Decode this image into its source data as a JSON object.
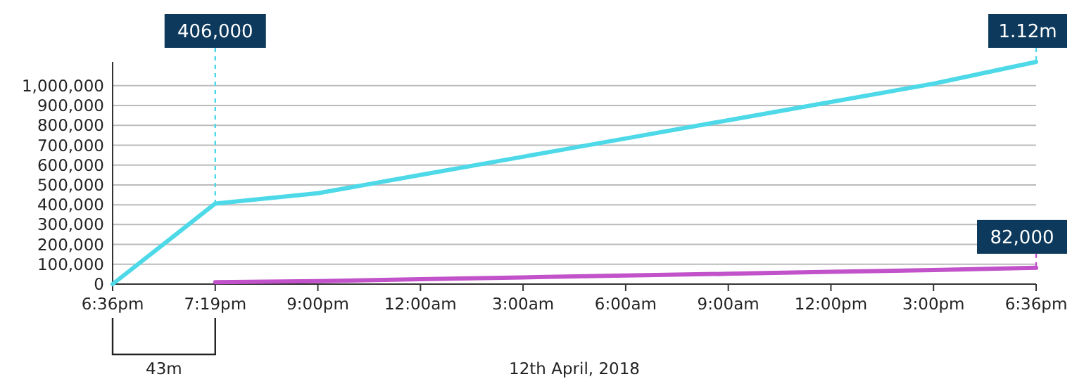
{
  "chart_data": {
    "type": "line",
    "categories": [
      "6:36pm",
      "7:19pm",
      "9:00pm",
      "12:00am",
      "3:00am",
      "6:00am",
      "9:00am",
      "12:00pm",
      "3:00pm",
      "6:36pm"
    ],
    "series": [
      {
        "color": "#4dd9e8",
        "values": [
          0,
          406000,
          458000,
          550000,
          642000,
          734000,
          826000,
          918000,
          1010000,
          1120000
        ],
        "value_labels": [
          null,
          "406,000",
          null,
          null,
          null,
          null,
          null,
          null,
          null,
          "1.12m"
        ]
      },
      {
        "color": "#c152c9",
        "values": [
          null,
          10000,
          15000,
          25000,
          34000,
          43000,
          52000,
          62000,
          71000,
          82000
        ],
        "value_labels": [
          null,
          null,
          null,
          null,
          null,
          null,
          null,
          null,
          null,
          "82,000"
        ]
      }
    ],
    "ylim": [
      0,
      1120000
    ],
    "yticks": [
      {
        "value": 0,
        "label": "0"
      },
      {
        "value": 100000,
        "label": "100,000"
      },
      {
        "value": 200000,
        "label": "200,000"
      },
      {
        "value": 300000,
        "label": "300,000"
      },
      {
        "value": 400000,
        "label": "400,000"
      },
      {
        "value": 500000,
        "label": "500,000"
      },
      {
        "value": 600000,
        "label": "600,000"
      },
      {
        "value": 700000,
        "label": "700,000"
      },
      {
        "value": 800000,
        "label": "800,000"
      },
      {
        "value": 900000,
        "label": "900,000"
      },
      {
        "value": 1000000,
        "label": "1,000,000"
      }
    ],
    "grid": "y",
    "marker": "none",
    "line_style": "solid",
    "annotations": [
      "43m",
      "12th April, 2018"
    ]
  }
}
